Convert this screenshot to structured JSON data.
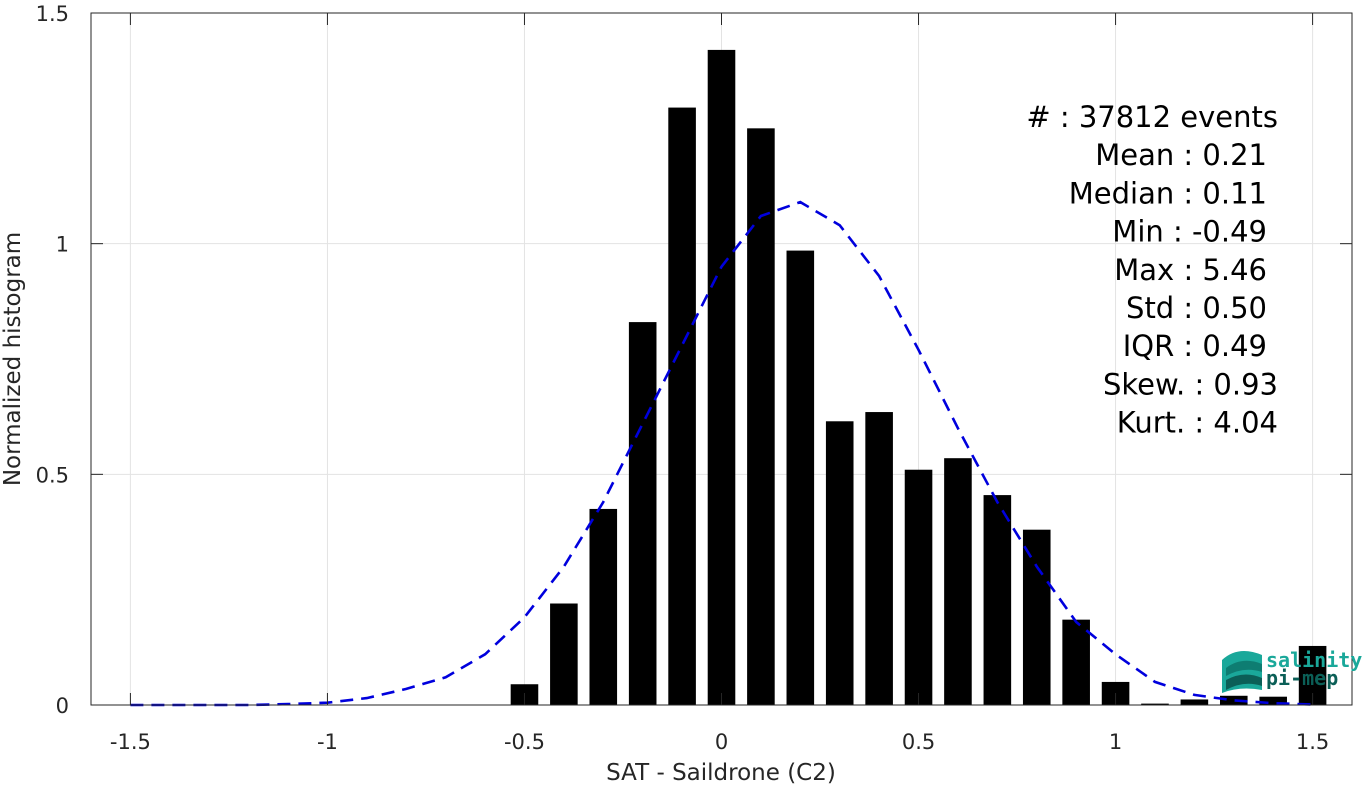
{
  "chart_data": {
    "type": "bar",
    "xlabel": "SAT - Saildrone (C2)",
    "ylabel": "Normalized histogram",
    "xlim": [
      -1.6,
      1.6
    ],
    "ylim": [
      0,
      1.5
    ],
    "grid": true,
    "xticks": [
      -1.5,
      -1,
      -0.5,
      0,
      0.5,
      1,
      1.5
    ],
    "xtick_labels": [
      "-1.5",
      "-1",
      "-0.5",
      "0",
      "0.5",
      "1",
      "1.5"
    ],
    "yticks": [
      0,
      0.5,
      1,
      1.5
    ],
    "ytick_labels": [
      "0",
      "0.5",
      "1",
      "1.5"
    ],
    "bar_width": 0.07,
    "bars": {
      "x": [
        -0.5,
        -0.4,
        -0.3,
        -0.2,
        -0.1,
        0.0,
        0.1,
        0.2,
        0.3,
        0.4,
        0.5,
        0.6,
        0.7,
        0.8,
        0.9,
        1.0,
        1.1,
        1.2,
        1.3,
        1.4,
        1.5
      ],
      "y": [
        0.045,
        0.22,
        0.425,
        0.83,
        1.295,
        1.42,
        1.25,
        0.985,
        0.615,
        0.635,
        0.51,
        0.535,
        0.455,
        0.38,
        0.185,
        0.05,
        0.003,
        0.012,
        0.02,
        0.018,
        0.128
      ],
      "color": "#000000"
    },
    "fit_curve": {
      "style": "dashed",
      "color": "#0000dd",
      "x": [
        -1.5,
        -1.4,
        -1.3,
        -1.2,
        -1.1,
        -1.0,
        -0.9,
        -0.8,
        -0.7,
        -0.6,
        -0.5,
        -0.4,
        -0.3,
        -0.2,
        -0.1,
        0.0,
        0.1,
        0.2,
        0.3,
        0.4,
        0.5,
        0.6,
        0.7,
        0.8,
        0.9,
        1.0,
        1.1,
        1.2,
        1.3,
        1.4,
        1.5
      ],
      "y": [
        0.0,
        0.0,
        0.0,
        0.0,
        0.002,
        0.005,
        0.015,
        0.035,
        0.06,
        0.11,
        0.19,
        0.3,
        0.44,
        0.61,
        0.78,
        0.95,
        1.06,
        1.09,
        1.04,
        0.93,
        0.77,
        0.6,
        0.44,
        0.3,
        0.18,
        0.11,
        0.05,
        0.022,
        0.01,
        0.004,
        0.001
      ]
    },
    "stats": [
      "#  : 37812 events",
      "Mean : 0.21",
      "Median : 0.11",
      "Min : -0.49",
      "Max : 5.46",
      "Std : 0.50",
      "IQR : 0.49",
      "Skew. : 0.93",
      "Kurt. : 4.04"
    ]
  },
  "logo": {
    "line1": "salinity",
    "line2": "pi-mep",
    "color": "#1aa89a"
  }
}
